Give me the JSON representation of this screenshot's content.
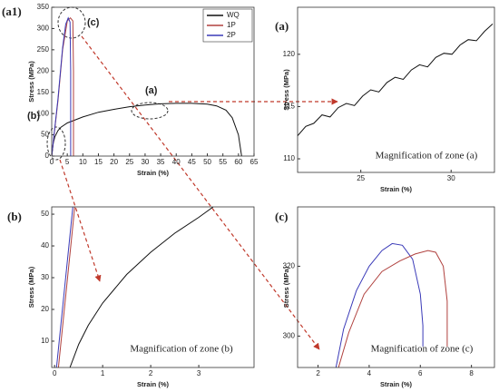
{
  "chart_data": [
    {
      "type": "line",
      "panel_label": "(a1)",
      "xlabel": "Strain (%)",
      "ylabel": "Stress (MPa)",
      "annotations": [
        "(a)",
        "(b)",
        "(c)"
      ],
      "xlim": [
        0,
        65
      ],
      "xticks": [
        0,
        5,
        10,
        15,
        20,
        25,
        30,
        35,
        40,
        45,
        50,
        55,
        60,
        65
      ],
      "ylim": [
        0,
        350
      ],
      "yticks": [
        0,
        50,
        100,
        150,
        200,
        250,
        300,
        350
      ],
      "series": [
        {
          "name": "WQ",
          "color": "#111111",
          "x": [
            0,
            0.5,
            1,
            2,
            3,
            5,
            10,
            15,
            20,
            25,
            30,
            35,
            40,
            45,
            50,
            53,
            56,
            58,
            60,
            61
          ],
          "values": [
            0,
            30,
            45,
            60,
            68,
            78,
            92,
            103,
            110,
            116,
            120,
            123,
            124,
            124,
            122,
            118,
            108,
            90,
            50,
            0
          ]
        },
        {
          "name": "1P",
          "color": "#b0413e",
          "x": [
            0,
            2,
            3.5,
            5,
            6,
            6.8,
            7,
            7
          ],
          "values": [
            0,
            130,
            250,
            318,
            325,
            318,
            200,
            0
          ]
        },
        {
          "name": "2P",
          "color": "#3a3ab8",
          "x": [
            0,
            2,
            3.5,
            4.5,
            5.3,
            5.9,
            6.1,
            6.1
          ],
          "values": [
            0,
            135,
            255,
            310,
            325,
            315,
            200,
            0
          ]
        }
      ]
    },
    {
      "type": "line",
      "panel_label": "(a)",
      "xlabel": "Strain (%)",
      "ylabel": "Stress (MPa)",
      "annotation": "Magnification of zone (a)",
      "xlim": [
        21.5,
        32.4
      ],
      "xticks": [
        25,
        30
      ],
      "ylim": [
        108.7,
        124.5
      ],
      "yticks": [
        110,
        115,
        120
      ],
      "series": [
        {
          "name": "WQ",
          "color": "#111111",
          "x": [
            21.5,
            21.95,
            22.4,
            22.85,
            23.3,
            23.75,
            24.2,
            24.65,
            25.1,
            25.55,
            26,
            26.45,
            26.9,
            27.35,
            27.8,
            28.25,
            28.7,
            29.15,
            29.6,
            30.05,
            30.5,
            30.95,
            31.4,
            31.85,
            32.3
          ],
          "values": [
            112.2,
            113.1,
            113.4,
            114.2,
            114.0,
            114.9,
            115.3,
            115.1,
            116.0,
            116.6,
            116.4,
            117.3,
            117.8,
            117.6,
            118.5,
            119.0,
            118.8,
            119.7,
            120.1,
            120.0,
            120.9,
            121.4,
            121.3,
            122.2,
            122.9
          ]
        }
      ]
    },
    {
      "type": "line",
      "panel_label": "(b)",
      "xlabel": "Strain (%)",
      "ylabel": "Stress (MPa)",
      "annotation": "Magnification of zone (b)",
      "xlim": [
        -0.06,
        4.15
      ],
      "xticks": [
        0,
        1,
        2,
        3
      ],
      "ylim": [
        1.7,
        52.3
      ],
      "yticks": [
        10,
        20,
        30,
        40,
        50
      ],
      "series": [
        {
          "name": "WQ",
          "color": "#111111",
          "x": [
            0.32,
            0.5,
            0.7,
            1,
            1.5,
            2,
            2.5,
            3,
            3.3
          ],
          "values": [
            1.7,
            9,
            15,
            22,
            31,
            38,
            44,
            49,
            52.3
          ]
        },
        {
          "name": "1P",
          "color": "#b0413e",
          "x": [
            0.08,
            0.42
          ],
          "values": [
            1.7,
            52.3
          ]
        },
        {
          "name": "2P",
          "color": "#3a3ab8",
          "x": [
            0.04,
            0.38
          ],
          "values": [
            1.7,
            52.3
          ]
        }
      ]
    },
    {
      "type": "line",
      "panel_label": "(c)",
      "xlabel": "Strain (%)",
      "ylabel": "Stress (MPa)",
      "annotation": "Magnification of zone (c)",
      "xlim": [
        1.2,
        8.9
      ],
      "xticks": [
        2,
        4,
        6,
        8
      ],
      "ylim": [
        291,
        337
      ],
      "yticks": [
        300,
        320
      ],
      "series": [
        {
          "name": "2P",
          "color": "#3a3ab8",
          "x": [
            2.7,
            3,
            3.5,
            4,
            4.5,
            4.9,
            5.3,
            5.7,
            6,
            6.1,
            6.1
          ],
          "values": [
            291,
            302,
            313,
            320,
            324.5,
            326.5,
            326,
            322,
            312,
            303,
            297
          ]
        },
        {
          "name": "1P",
          "color": "#b0413e",
          "x": [
            2.8,
            3.2,
            3.8,
            4.5,
            5.2,
            5.8,
            6.3,
            6.6,
            6.9,
            7.05,
            7.05
          ],
          "values": [
            291,
            301,
            312,
            318.5,
            321.5,
            323.5,
            324.5,
            324,
            320,
            310,
            297
          ]
        }
      ]
    }
  ]
}
